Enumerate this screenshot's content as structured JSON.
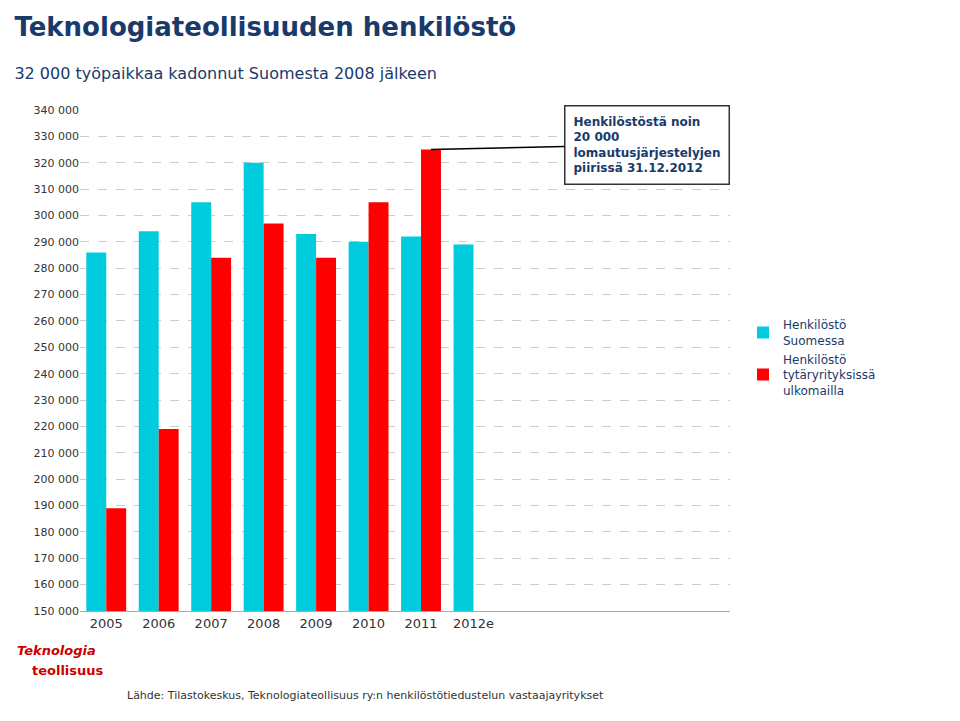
{
  "chart_data": {
    "type": "bar",
    "title": "Teknologiateollisuuden henkilöstö",
    "subtitle": "32 000 työpaikkaa kadonnut Suomesta 2008 jälkeen",
    "categories": [
      "2005",
      "2006",
      "2007",
      "2008",
      "2009",
      "2010",
      "2011",
      "2012e"
    ],
    "series": [
      {
        "name": "Henkilöstö\nSuomessa",
        "color": "#00CCDD",
        "values": [
          286000,
          294000,
          305000,
          320000,
          293000,
          290000,
          292000,
          289000
        ]
      },
      {
        "name": "Henkilöstö\ntytäryrityksissä\nulkomailla",
        "color": "#FF0000",
        "values": [
          189000,
          219000,
          284000,
          297000,
          284000,
          305000,
          325000,
          null
        ]
      }
    ],
    "ylim": [
      150000,
      340000
    ],
    "yticks": [
      {
        "value": 150000,
        "label": "150 000"
      },
      {
        "value": 160000,
        "label": "160 000"
      },
      {
        "value": 170000,
        "label": "170 000"
      },
      {
        "value": 180000,
        "label": "180 000"
      },
      {
        "value": 190000,
        "label": "190 000"
      },
      {
        "value": 200000,
        "label": "200 000"
      },
      {
        "value": 210000,
        "label": "210 000"
      },
      {
        "value": 220000,
        "label": "220 000"
      },
      {
        "value": 230000,
        "label": "230 000"
      },
      {
        "value": 240000,
        "label": "240 000"
      },
      {
        "value": 250000,
        "label": "250 000"
      },
      {
        "value": 260000,
        "label": "260 000"
      },
      {
        "value": 270000,
        "label": "270 000"
      },
      {
        "value": 280000,
        "label": "280 000"
      },
      {
        "value": 290000,
        "label": "290 000"
      },
      {
        "value": 300000,
        "label": "300 000"
      },
      {
        "value": 310000,
        "label": "310 000"
      },
      {
        "value": 320000,
        "label": "320 000"
      },
      {
        "value": 330000,
        "label": "330 000"
      },
      {
        "value": 340000,
        "label": "340 000"
      }
    ],
    "grid": true,
    "legend": "right",
    "annotation": "Henkilöstöstä noin\n20 000\nlomautusjärjestelyjen\npiirissä 31.12.2012",
    "source": "Lähde: Tilastokeskus, Teknologiateollisuus ry:n henkilöstötiedustelun vastaajayritykset",
    "logo": [
      "Teknologia",
      "teollisuus"
    ]
  }
}
